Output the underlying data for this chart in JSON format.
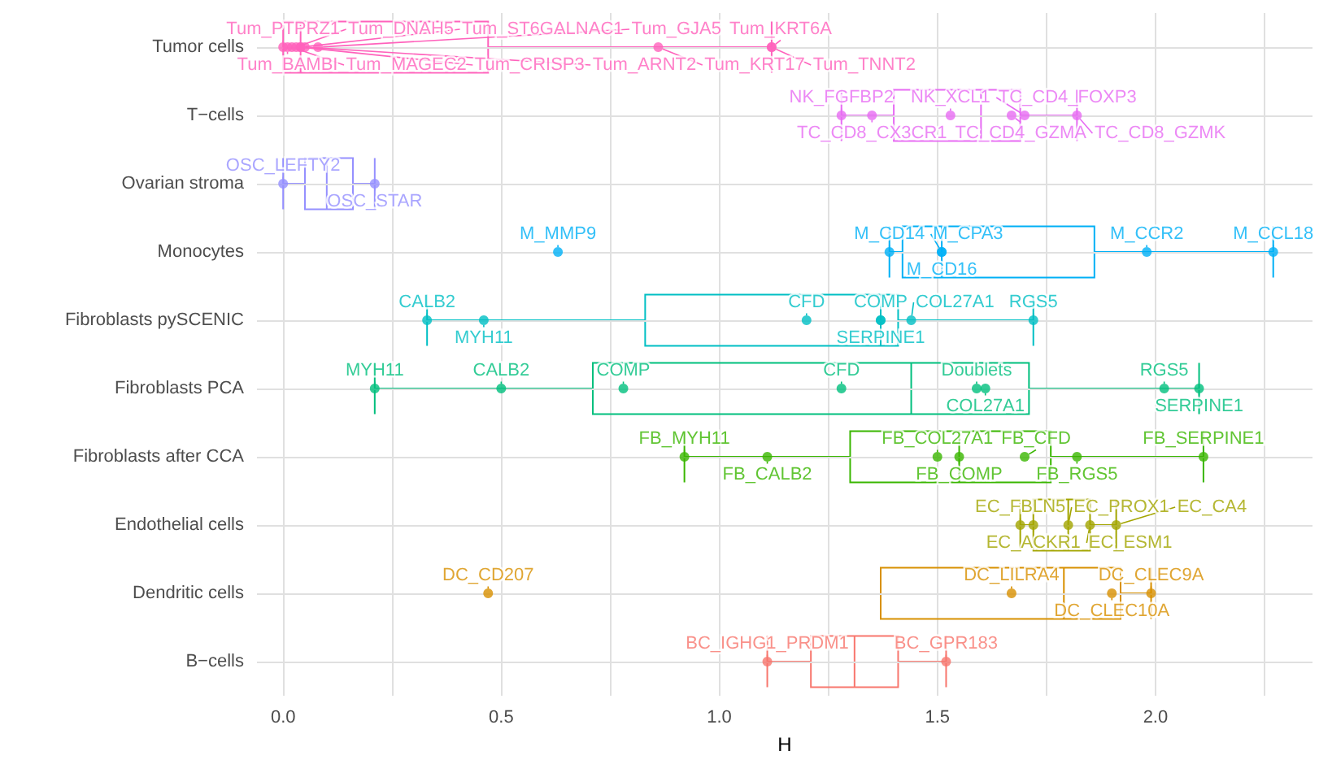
{
  "chart_data": {
    "type": "box",
    "orientation": "horizontal",
    "xlabel": "H",
    "grid": true,
    "marker": "circle",
    "categories": [
      "Tumor cells",
      "T−cells",
      "Ovarian stroma",
      "Monocytes",
      "Fibroblasts pySCENIC",
      "Fibroblasts PCA",
      "Fibroblasts after CCA",
      "Endothelial cells",
      "Dendritic cells",
      "B−cells"
    ],
    "colors": [
      "#ff62bc",
      "#e76bf3",
      "#9590ff",
      "#00b0f6",
      "#00bfc4",
      "#00bf7d",
      "#39b600",
      "#a3a500",
      "#d89000",
      "#f8766d"
    ],
    "boxes": [
      {
        "low": 0.0,
        "q1": 0.0,
        "median": 0.04,
        "q3": 0.47,
        "high": 1.12
      },
      {
        "low": 1.28,
        "q1": 1.4,
        "median": 1.6,
        "q3": 1.69,
        "high": 1.82
      },
      {
        "low": 0.0,
        "q1": 0.05,
        "median": 0.1,
        "q3": 0.16,
        "high": 0.21
      },
      {
        "low": 1.39,
        "q1": 1.42,
        "median": 1.51,
        "q3": 1.86,
        "high": 2.27
      },
      {
        "low": 0.33,
        "q1": 0.83,
        "median": 1.37,
        "q3": 1.41,
        "high": 1.72
      },
      {
        "low": 0.21,
        "q1": 0.71,
        "median": 1.44,
        "q3": 1.71,
        "high": 2.1
      },
      {
        "low": 0.92,
        "q1": 1.3,
        "median": 1.55,
        "q3": 1.76,
        "high": 2.11
      },
      {
        "low": 1.69,
        "q1": 1.72,
        "median": 1.8,
        "q3": 1.85,
        "high": 1.91
      },
      {
        "low": 1.37,
        "q1": 1.37,
        "median": 1.79,
        "q3": 1.92,
        "high": 1.99
      },
      {
        "low": 1.11,
        "q1": 1.21,
        "median": 1.31,
        "q3": 1.41,
        "high": 1.52
      }
    ],
    "xlim": [
      -0.06,
      2.36
    ],
    "xticks": [
      {
        "value": 0,
        "label": "0.0"
      },
      {
        "value": 0.25,
        "label": null
      },
      {
        "value": 0.5,
        "label": "0.5"
      },
      {
        "value": 0.75,
        "label": null
      },
      {
        "value": 1,
        "label": "1.0"
      },
      {
        "value": 1.25,
        "label": null
      },
      {
        "value": 1.5,
        "label": "1.5"
      },
      {
        "value": 1.75,
        "label": null
      },
      {
        "value": 2,
        "label": "2.0"
      },
      {
        "value": 2.25,
        "label": null
      }
    ],
    "series": [
      {
        "type": "scatter",
        "color": "#ff62bc",
        "x": [
          "Tumor cells",
          "Tumor cells",
          "Tumor cells",
          "Tumor cells",
          "Tumor cells",
          "Tumor cells",
          "Tumor cells",
          "Tumor cells",
          "Tumor cells",
          "Tumor cells",
          "Tumor cells"
        ],
        "values": [
          0.02,
          0.0,
          0.04,
          0.01,
          0.05,
          0.03,
          0.08,
          0.04,
          0.86,
          1.12,
          1.12
        ],
        "value_labels": [
          "Tum_MAGEC2",
          "Tum_PTPRZ1",
          "Tum_ST6GALNAC1",
          "Tum_BAMBI",
          "Tum_ARNT2",
          "Tum_DNAH5",
          "Tum_GJA5",
          "Tum_CRISP3",
          "Tum_KRT17",
          "Tum_KRT6A",
          "Tum_TNNT2"
        ]
      },
      {
        "type": "scatter",
        "color": "#e76bf3",
        "x": [
          "T−cells",
          "T−cells",
          "T−cells",
          "T−cells",
          "T−cells",
          "T−cells"
        ],
        "values": [
          1.28,
          1.35,
          1.53,
          1.67,
          1.82,
          1.7
        ],
        "value_labels": [
          "NK_FGFBP2",
          "TC_CD8_CX3CR1",
          "NK_XCL1",
          "TC_CD4_GZMA",
          "TC_CD8_GZMK",
          "TC_CD4_FOXP3"
        ]
      },
      {
        "type": "scatter",
        "color": "#9590ff",
        "x": [
          "Ovarian stroma",
          "Ovarian stroma"
        ],
        "values": [
          0.21,
          0.0
        ],
        "value_labels": [
          "OSC_STAR",
          "OSC_LEFTY2"
        ]
      },
      {
        "type": "scatter",
        "color": "#00b0f6",
        "x": [
          "Monocytes",
          "Monocytes",
          "Monocytes",
          "Monocytes",
          "Monocytes",
          "Monocytes"
        ],
        "values": [
          1.39,
          0.63,
          1.51,
          1.51,
          1.98,
          2.27
        ],
        "value_labels": [
          "M_CD14",
          "M_MMP9",
          "M_CD16",
          "M_CPA3",
          "M_CCR2",
          "M_CCL18"
        ]
      },
      {
        "type": "scatter",
        "color": "#00bfc4",
        "x": [
          "Fibroblasts pySCENIC",
          "Fibroblasts pySCENIC",
          "Fibroblasts pySCENIC",
          "Fibroblasts pySCENIC",
          "Fibroblasts pySCENIC",
          "Fibroblasts pySCENIC",
          "Fibroblasts pySCENIC"
        ],
        "values": [
          0.33,
          0.46,
          1.2,
          1.37,
          1.37,
          1.44,
          1.72
        ],
        "value_labels": [
          "CALB2",
          "MYH11",
          "CFD",
          "COMP",
          "SERPINE1",
          "COL27A1",
          "RGS5"
        ]
      },
      {
        "type": "scatter",
        "color": "#00bf7d",
        "x": [
          "Fibroblasts PCA",
          "Fibroblasts PCA",
          "Fibroblasts PCA",
          "Fibroblasts PCA",
          "Fibroblasts PCA",
          "Fibroblasts PCA",
          "Fibroblasts PCA",
          "Fibroblasts PCA"
        ],
        "values": [
          0.21,
          0.5,
          0.78,
          1.28,
          1.59,
          1.61,
          2.02,
          2.1
        ],
        "value_labels": [
          "MYH11",
          "CALB2",
          "COMP",
          "CFD",
          "Doublets",
          "COL27A1",
          "RGS5",
          "SERPINE1"
        ]
      },
      {
        "type": "scatter",
        "color": "#39b600",
        "x": [
          "Fibroblasts after CCA",
          "Fibroblasts after CCA",
          "Fibroblasts after CCA",
          "Fibroblasts after CCA",
          "Fibroblasts after CCA",
          "Fibroblasts after CCA",
          "Fibroblasts after CCA"
        ],
        "values": [
          0.92,
          1.11,
          1.5,
          1.55,
          1.7,
          1.82,
          2.11
        ],
        "value_labels": [
          "FB_MYH11",
          "FB_CALB2",
          "FB_COL27A1",
          "FB_COMP",
          "FB_CFD",
          "FB_RGS5",
          "FB_SERPINE1"
        ]
      },
      {
        "type": "scatter",
        "color": "#a3a500",
        "x": [
          "Endothelial cells",
          "Endothelial cells",
          "Endothelial cells",
          "Endothelial cells",
          "Endothelial cells"
        ],
        "values": [
          1.69,
          1.72,
          1.8,
          1.85,
          1.91
        ],
        "value_labels": [
          "EC_FBLN5",
          "EC_ACKR1",
          "EC_PROX1",
          "EC_ESM1",
          "EC_CA4"
        ]
      },
      {
        "type": "scatter",
        "color": "#d89000",
        "x": [
          "Dendritic cells",
          "Dendritic cells",
          "Dendritic cells",
          "Dendritic cells"
        ],
        "values": [
          0.47,
          1.67,
          1.9,
          1.99
        ],
        "value_labels": [
          "DC_CD207",
          "DC_LILRA4",
          "DC_CLEC10A",
          "DC_CLEC9A"
        ]
      },
      {
        "type": "scatter",
        "color": "#f8766d",
        "x": [
          "B−cells",
          "B−cells"
        ],
        "values": [
          1.11,
          1.52
        ],
        "value_labels": [
          "BC_IGHG1_PRDM1",
          "BC_GPR183"
        ]
      }
    ]
  }
}
